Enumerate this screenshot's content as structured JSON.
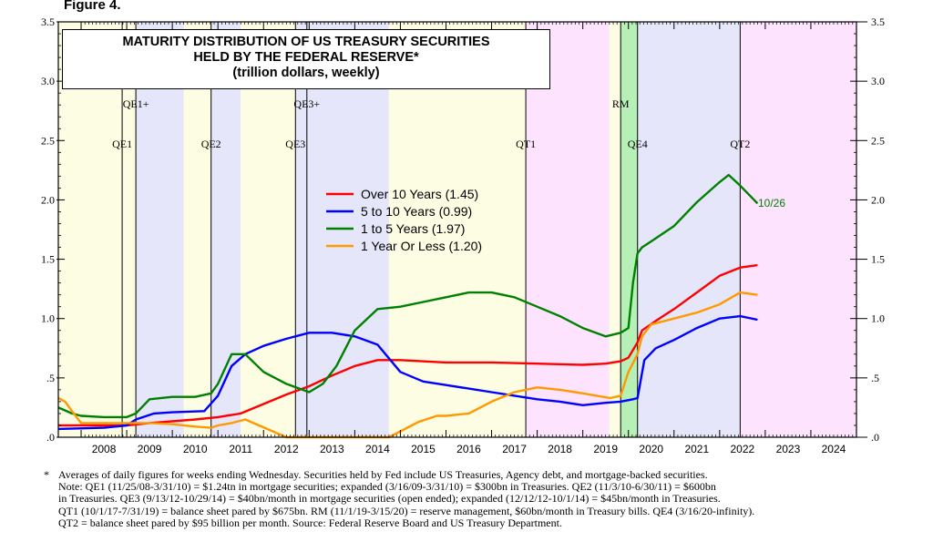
{
  "figure_label": "Figure 4.",
  "title": {
    "line1": "MATURITY DISTRIBUTION OF US TREASURY SECURITIES",
    "line2": "HELD BY THE FEDERAL RESERVE*",
    "line3": "(trillion dollars, weekly)"
  },
  "footnote": {
    "marker": "*",
    "lines": [
      "Averages of daily figures for weeks ending Wednesday. Securities held by Fed include US Treasuries, Agency debt, and mortgage-backed securities.",
      "Note: QE1 (11/25/08-3/31/10) = $1.24tn in mortgage securities; expanded (3/16/09-3/31/10) = $300bn in Treasuries. QE2 (11/3/10-6/30/11) = $600bn",
      "in Treasuries. QE3 (9/13/12-10/29/14) = $40bn/month in mortgage securities (open ended); expanded (12/12/12-10/1/14) = $45bn/month in Treasuries.",
      "QT1 (10/1/17-7/31/19) = balance sheet pared by $675bn. RM (11/1/19-3/15/20) = reserve management, $60bn/month in Treasury bills. QE4 (3/16/20-infinity).",
      "QT2 = balance sheet pared by $95 billion per month. Source: Federal Reserve Board and US Treasury Department."
    ]
  },
  "chart_data": {
    "type": "line",
    "title": "MATURITY DISTRIBUTION OF US TREASURY SECURITIES HELD BY THE FEDERAL RESERVE*",
    "subtitle": "(trillion dollars, weekly)",
    "xlabel": "",
    "ylabel": "",
    "xlim": [
      2007.5,
      2025.0
    ],
    "ylim": [
      0,
      3.5
    ],
    "x_tick_labels": [
      "2008",
      "2009",
      "2010",
      "2011",
      "2012",
      "2013",
      "2014",
      "2015",
      "2016",
      "2017",
      "2018",
      "2019",
      "2020",
      "2021",
      "2022",
      "2023",
      "2024"
    ],
    "x_tick_values": [
      2008,
      2009,
      2010,
      2011,
      2012,
      2013,
      2014,
      2015,
      2016,
      2017,
      2018,
      2019,
      2020,
      2021,
      2022,
      2023,
      2024
    ],
    "y_ticks": [
      0,
      0.5,
      1.0,
      1.5,
      2.0,
      2.5,
      3.0,
      3.5
    ],
    "y_tick_labels": [
      ".0",
      ".5",
      "1.0",
      "1.5",
      "2.0",
      "2.5",
      "3.0",
      "3.5"
    ],
    "shaded_periods": [
      {
        "start": 2007.5,
        "end": 2008.9,
        "color": "#fdfde3"
      },
      {
        "start": 2008.9,
        "end": 2009.2,
        "color": "#fdfde3"
      },
      {
        "start": 2009.2,
        "end": 2010.25,
        "color": "#e6e6fb"
      },
      {
        "start": 2010.25,
        "end": 2010.85,
        "color": "#fdfde3"
      },
      {
        "start": 2010.85,
        "end": 2011.5,
        "color": "#e6e6fb"
      },
      {
        "start": 2011.5,
        "end": 2012.7,
        "color": "#fdfde3"
      },
      {
        "start": 2012.7,
        "end": 2012.95,
        "color": "#e6e6fb"
      },
      {
        "start": 2012.95,
        "end": 2014.75,
        "color": "#e6e6fb"
      },
      {
        "start": 2014.75,
        "end": 2017.75,
        "color": "#fdfde3"
      },
      {
        "start": 2017.75,
        "end": 2019.58,
        "color": "#fde3fd"
      },
      {
        "start": 2019.58,
        "end": 2019.83,
        "color": "#fdfde3"
      },
      {
        "start": 2019.83,
        "end": 2020.2,
        "color": "#b7f0b7"
      },
      {
        "start": 2020.2,
        "end": 2022.45,
        "color": "#e6e6fb"
      },
      {
        "start": 2022.45,
        "end": 2025.0,
        "color": "#fde3fd"
      }
    ],
    "event_lines": [
      {
        "label": "QE1",
        "x": 2008.9,
        "row": "lower"
      },
      {
        "label": "QE1+",
        "x": 2009.2,
        "row": "upper"
      },
      {
        "label": "QE2",
        "x": 2010.85,
        "row": "lower"
      },
      {
        "label": "QE3",
        "x": 2012.7,
        "row": "lower"
      },
      {
        "label": "QE3+",
        "x": 2012.95,
        "row": "upper"
      },
      {
        "label": "QT1",
        "x": 2017.75,
        "row": "lower"
      },
      {
        "label": "RM",
        "x": 2019.83,
        "row": "upper"
      },
      {
        "label": "QE4",
        "x": 2020.2,
        "row": "lower"
      },
      {
        "label": "QT2",
        "x": 2022.45,
        "row": "lower"
      }
    ],
    "end_date_label": "10/26",
    "legend_position": "center-left, inside plot",
    "series": [
      {
        "name": "Over 10 Years (1.45)",
        "color": "#ff0000",
        "x": [
          2007.5,
          2008.5,
          2009.0,
          2009.5,
          2010.5,
          2011.0,
          2011.5,
          2012.0,
          2012.5,
          2013.0,
          2013.5,
          2014.0,
          2014.5,
          2015.0,
          2016.0,
          2017.0,
          2018.0,
          2019.0,
          2019.5,
          2019.83,
          2020.0,
          2020.2,
          2020.3,
          2020.6,
          2021.0,
          2021.5,
          2022.0,
          2022.45,
          2022.83
        ],
        "values": [
          0.1,
          0.1,
          0.1,
          0.12,
          0.15,
          0.17,
          0.2,
          0.28,
          0.36,
          0.43,
          0.52,
          0.6,
          0.65,
          0.65,
          0.63,
          0.63,
          0.62,
          0.61,
          0.62,
          0.64,
          0.67,
          0.8,
          0.9,
          0.98,
          1.08,
          1.22,
          1.36,
          1.43,
          1.45
        ]
      },
      {
        "name": "5 to 10 Years (0.99)",
        "color": "#0000ff",
        "x": [
          2007.5,
          2008.5,
          2009.0,
          2009.2,
          2009.6,
          2010.0,
          2010.7,
          2011.0,
          2011.3,
          2011.6,
          2012.0,
          2012.5,
          2013.0,
          2013.5,
          2014.0,
          2014.5,
          2015.0,
          2015.5,
          2016.0,
          2016.5,
          2017.0,
          2017.5,
          2018.0,
          2018.5,
          2019.0,
          2019.5,
          2019.83,
          2020.1,
          2020.2,
          2020.35,
          2020.6,
          2021.0,
          2021.5,
          2022.0,
          2022.45,
          2022.83
        ],
        "values": [
          0.07,
          0.08,
          0.1,
          0.15,
          0.2,
          0.21,
          0.22,
          0.35,
          0.6,
          0.7,
          0.77,
          0.83,
          0.88,
          0.88,
          0.85,
          0.78,
          0.55,
          0.47,
          0.44,
          0.41,
          0.38,
          0.35,
          0.32,
          0.3,
          0.27,
          0.29,
          0.3,
          0.32,
          0.33,
          0.65,
          0.75,
          0.82,
          0.92,
          1.0,
          1.02,
          0.99
        ]
      },
      {
        "name": "1 to 5 Years (1.97)",
        "color": "#008000",
        "x": [
          2007.5,
          2007.8,
          2008.0,
          2008.5,
          2009.0,
          2009.2,
          2009.5,
          2010.0,
          2010.5,
          2010.85,
          2011.0,
          2011.3,
          2011.6,
          2012.0,
          2012.5,
          2013.0,
          2013.3,
          2013.6,
          2014.0,
          2014.5,
          2015.0,
          2015.5,
          2016.0,
          2016.5,
          2017.0,
          2017.5,
          2018.0,
          2018.5,
          2019.0,
          2019.5,
          2019.83,
          2020.0,
          2020.1,
          2020.2,
          2020.3,
          2020.5,
          2021.0,
          2021.5,
          2022.0,
          2022.2,
          2022.45,
          2022.83
        ],
        "values": [
          0.25,
          0.2,
          0.18,
          0.17,
          0.17,
          0.2,
          0.32,
          0.34,
          0.34,
          0.37,
          0.45,
          0.7,
          0.7,
          0.55,
          0.45,
          0.38,
          0.45,
          0.6,
          0.9,
          1.08,
          1.1,
          1.14,
          1.18,
          1.22,
          1.22,
          1.18,
          1.1,
          1.02,
          0.92,
          0.85,
          0.88,
          0.92,
          1.3,
          1.55,
          1.6,
          1.65,
          1.78,
          1.98,
          2.15,
          2.21,
          2.12,
          1.97
        ]
      },
      {
        "name": "1 Year Or Less (1.20)",
        "color": "#ff9900",
        "x": [
          2007.5,
          2007.65,
          2007.8,
          2008.0,
          2008.5,
          2009.0,
          2009.5,
          2010.0,
          2010.5,
          2010.85,
          2011.0,
          2011.3,
          2011.6,
          2011.9,
          2012.2,
          2012.5,
          2013.0,
          2014.0,
          2014.75,
          2015.0,
          2015.4,
          2015.8,
          2016.0,
          2016.5,
          2017.0,
          2017.5,
          2018.0,
          2018.5,
          2019.0,
          2019.3,
          2019.6,
          2019.83,
          2020.0,
          2020.2,
          2020.3,
          2020.5,
          2021.0,
          2021.5,
          2022.0,
          2022.45,
          2022.83
        ],
        "values": [
          0.33,
          0.3,
          0.22,
          0.12,
          0.12,
          0.12,
          0.12,
          0.11,
          0.09,
          0.08,
          0.1,
          0.12,
          0.15,
          0.1,
          0.05,
          0.0,
          0.0,
          0.0,
          0.0,
          0.05,
          0.13,
          0.18,
          0.18,
          0.2,
          0.3,
          0.38,
          0.42,
          0.4,
          0.37,
          0.35,
          0.33,
          0.35,
          0.55,
          0.7,
          0.85,
          0.95,
          1.0,
          1.05,
          1.12,
          1.22,
          1.2
        ]
      }
    ]
  }
}
